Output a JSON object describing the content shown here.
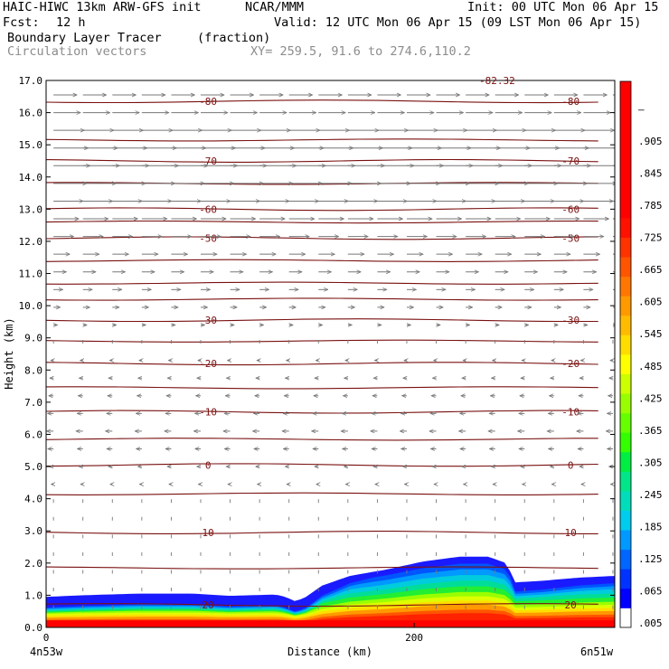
{
  "header": {
    "model": "HAIC-HIWC 13km ARW-GFS init",
    "org": "NCAR/MMM",
    "init": "Init: 00 UTC Mon 06 Apr 15",
    "fcst_label": "Fcst:",
    "fcst_value": "12 h",
    "valid": "Valid: 12 UTC Mon 06 Apr 15 (09 LST Mon 06 Apr 15)",
    "field": "Boundary Layer Tracer",
    "field_units": "(fraction)",
    "overlay": "Circulation vectors",
    "xy": "XY= 259.5, 91.6 to 274.6,110.2"
  },
  "chart_data": {
    "type": "cross-section",
    "ylabel": "Height (km)",
    "xlabel": "Distance (km)",
    "xlim": [
      0,
      309
    ],
    "ylim": [
      0,
      17
    ],
    "yticks": [
      "0.0",
      "1.0",
      "2.0",
      "3.0",
      "4.0",
      "5.0",
      "6.0",
      "7.0",
      "8.0",
      "9.0",
      "10.0",
      "11.0",
      "12.0",
      "13.0",
      "14.0",
      "15.0",
      "16.0",
      "17.0"
    ],
    "xticks": [
      {
        "x": 0,
        "label": "0"
      },
      {
        "x": 200,
        "label": "200"
      }
    ],
    "endpoints": {
      "left": "4n53w",
      "right": "6n51w"
    },
    "top_annotation": "-82.32",
    "colorbar": {
      "labels": [
        ".005",
        ".065",
        ".125",
        ".185",
        ".245",
        ".305",
        ".365",
        ".425",
        ".485",
        ".545",
        ".605",
        ".665",
        ".725",
        ".785",
        ".845",
        ".905",
        "–"
      ],
      "colors": [
        "#ffffff",
        "#0000ff",
        "#0033ff",
        "#0066ff",
        "#0099ff",
        "#00ccee",
        "#00ddbb",
        "#00e688",
        "#00ee44",
        "#33ff00",
        "#66ff00",
        "#99ff00",
        "#ccff00",
        "#ffff00",
        "#ffdd00",
        "#ffbb00",
        "#ff9900",
        "#ff7700",
        "#ff5500",
        "#ff3300",
        "#ff1100",
        "#ff0000",
        "#ff0000",
        "#ff0000",
        "#ff0000",
        "#ff0000",
        "#ff0000",
        "#ff0000"
      ]
    },
    "isotherms": [
      {
        "label": "-80",
        "y": 16.35
      },
      {
        "label": "-70",
        "y": 14.5
      },
      {
        "label": "-60",
        "y": 13.0
      },
      {
        "label": "-50",
        "y": 12.1
      },
      {
        "label": "-30",
        "y": 9.55
      },
      {
        "label": "-20",
        "y": 8.2
      },
      {
        "label": "-10",
        "y": 6.7
      },
      {
        "label": "0",
        "y": 5.05
      },
      {
        "label": "10",
        "y": 2.95
      },
      {
        "label": "20",
        "y": 0.7
      }
    ],
    "contour_levels_unlabeled": [
      15.15,
      13.8,
      12.6,
      11.4,
      10.7,
      10.2,
      8.9,
      7.45,
      5.85,
      4.15,
      1.85
    ],
    "tracer_top_km": [
      [
        0,
        0.95
      ],
      [
        20,
        1.0
      ],
      [
        50,
        1.05
      ],
      [
        80,
        1.05
      ],
      [
        100,
        0.98
      ],
      [
        110,
        1.0
      ],
      [
        125,
        1.02
      ],
      [
        130,
        0.95
      ],
      [
        135,
        0.82
      ],
      [
        140,
        0.9
      ],
      [
        150,
        1.3
      ],
      [
        165,
        1.6
      ],
      [
        185,
        1.8
      ],
      [
        205,
        2.05
      ],
      [
        225,
        2.2
      ],
      [
        240,
        2.2
      ],
      [
        250,
        2.0
      ],
      [
        255,
        1.4
      ],
      [
        270,
        1.45
      ],
      [
        290,
        1.55
      ],
      [
        309,
        1.6
      ]
    ],
    "wind_profile": [
      {
        "y": 16.5,
        "u": 1.0
      },
      {
        "y": 14.5,
        "u": 1.6
      },
      {
        "y": 13.0,
        "u": 1.2
      },
      {
        "y": 12.0,
        "u": 0.8
      },
      {
        "y": 10.5,
        "u": 0.4
      },
      {
        "y": 9.5,
        "u": 0.2
      },
      {
        "y": 8.5,
        "u": -0.1
      },
      {
        "y": 6.0,
        "u": -0.3
      },
      {
        "y": 4.5,
        "u": -0.1
      },
      {
        "y": 3.0,
        "u": 0.0
      },
      {
        "y": 1.5,
        "u": 0.0
      },
      {
        "y": 0.0,
        "u": 0.0
      }
    ]
  }
}
